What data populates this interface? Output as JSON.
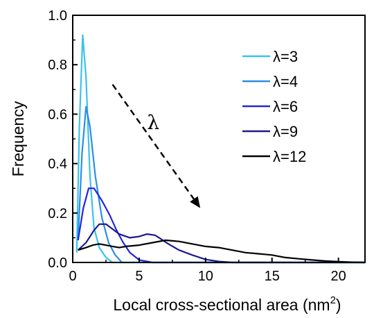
{
  "chart_data": {
    "type": "line",
    "xlabel": "Local cross-sectional area (nm",
    "xlabel_sup": "2",
    "xlabel_close": ")",
    "ylabel": "Frequency",
    "xlim": [
      0,
      22
    ],
    "ylim": [
      0,
      1.0
    ],
    "x_ticks": [
      0,
      5,
      10,
      15,
      20
    ],
    "x_tick_labels": [
      "0",
      "5",
      "10",
      "15",
      "20"
    ],
    "y_ticks": [
      0.0,
      0.2,
      0.4,
      0.6,
      0.8,
      1.0
    ],
    "y_tick_labels": [
      "0.0",
      "0.2",
      "0.4",
      "0.6",
      "0.8",
      "1.0"
    ],
    "grid": false,
    "legend_position": "top-right",
    "annotation": {
      "text": "λ",
      "arrow_from": [
        3.0,
        0.72
      ],
      "arrow_to": [
        9.6,
        0.22
      ],
      "text_at": [
        5.6,
        0.54
      ]
    },
    "series": [
      {
        "name": "λ=3",
        "color": "#38c2ec",
        "points": [
          [
            0.3,
            0.04
          ],
          [
            0.5,
            0.55
          ],
          [
            0.75,
            0.92
          ],
          [
            1.0,
            0.75
          ],
          [
            1.3,
            0.35
          ],
          [
            1.6,
            0.14
          ],
          [
            2.0,
            0.06
          ],
          [
            2.5,
            0.02
          ],
          [
            3.0,
            0.0
          ],
          [
            4.0,
            0.0
          ],
          [
            22,
            0.0
          ]
        ]
      },
      {
        "name": "λ=4",
        "color": "#2b8de6",
        "points": [
          [
            0.4,
            0.09
          ],
          [
            0.7,
            0.44
          ],
          [
            1.0,
            0.63
          ],
          [
            1.3,
            0.55
          ],
          [
            1.7,
            0.35
          ],
          [
            2.2,
            0.18
          ],
          [
            2.7,
            0.08
          ],
          [
            3.2,
            0.03
          ],
          [
            3.7,
            0.0
          ],
          [
            5.0,
            0.0
          ],
          [
            22,
            0.0
          ]
        ]
      },
      {
        "name": "λ=6",
        "color": "#2424dc",
        "points": [
          [
            0.4,
            0.09
          ],
          [
            0.8,
            0.22
          ],
          [
            1.2,
            0.3
          ],
          [
            1.6,
            0.3
          ],
          [
            2.2,
            0.25
          ],
          [
            2.8,
            0.19
          ],
          [
            3.3,
            0.13
          ],
          [
            3.8,
            0.08
          ],
          [
            4.3,
            0.04
          ],
          [
            5.0,
            0.01
          ],
          [
            6.0,
            0.0
          ],
          [
            22,
            0.0
          ]
        ]
      },
      {
        "name": "λ=9",
        "color": "#1c1891",
        "points": [
          [
            0.4,
            0.05
          ],
          [
            1.0,
            0.08
          ],
          [
            1.6,
            0.13
          ],
          [
            2.0,
            0.155
          ],
          [
            2.5,
            0.155
          ],
          [
            3.0,
            0.135
          ],
          [
            3.5,
            0.115
          ],
          [
            4.3,
            0.1
          ],
          [
            5.0,
            0.105
          ],
          [
            5.6,
            0.115
          ],
          [
            6.2,
            0.11
          ],
          [
            6.5,
            0.1
          ],
          [
            7.2,
            0.075
          ],
          [
            8.0,
            0.05
          ],
          [
            9.0,
            0.03
          ],
          [
            10.0,
            0.012
          ],
          [
            11.0,
            0.004
          ],
          [
            12.0,
            0.0
          ],
          [
            22,
            0.0
          ]
        ]
      },
      {
        "name": "λ=12",
        "color": "#000000",
        "points": [
          [
            0.4,
            0.05
          ],
          [
            1.0,
            0.06
          ],
          [
            1.5,
            0.07
          ],
          [
            2.0,
            0.075
          ],
          [
            2.5,
            0.07
          ],
          [
            3.0,
            0.065
          ],
          [
            3.5,
            0.06
          ],
          [
            4.0,
            0.065
          ],
          [
            5.0,
            0.07
          ],
          [
            6.0,
            0.08
          ],
          [
            7.0,
            0.09
          ],
          [
            8.0,
            0.085
          ],
          [
            9.0,
            0.075
          ],
          [
            10.0,
            0.065
          ],
          [
            11.0,
            0.06
          ],
          [
            12.0,
            0.05
          ],
          [
            13.0,
            0.04
          ],
          [
            14.0,
            0.035
          ],
          [
            15.0,
            0.03
          ],
          [
            16.0,
            0.02
          ],
          [
            17.0,
            0.015
          ],
          [
            18.0,
            0.01
          ],
          [
            19.0,
            0.006
          ],
          [
            20.0,
            0.003
          ],
          [
            21.0,
            0.001
          ],
          [
            22.0,
            0.0
          ]
        ]
      }
    ]
  }
}
